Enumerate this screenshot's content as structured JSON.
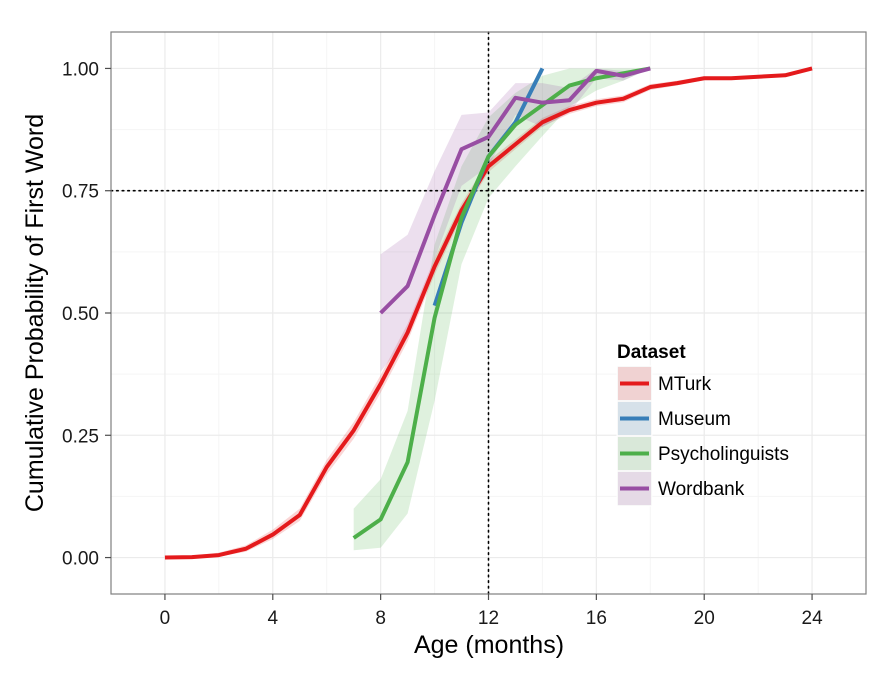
{
  "chart_data": {
    "type": "line",
    "xlabel": "Age (months)",
    "ylabel": "Cumulative Probability of First Word",
    "xlim": [
      -2,
      26
    ],
    "ylim": [
      -0.0745,
      1.0745
    ],
    "x_ticks": [
      0,
      4,
      8,
      12,
      16,
      20,
      24
    ],
    "y_ticks": [
      0.0,
      0.25,
      0.5,
      0.75,
      1.0
    ],
    "x_tick_labels": [
      "0",
      "4",
      "8",
      "12",
      "16",
      "20",
      "24"
    ],
    "y_tick_labels": [
      "0.00",
      "0.25",
      "0.50",
      "0.75",
      "1.00"
    ],
    "grid": true,
    "reference_lines": {
      "vertical_x": 12,
      "horizontal_y": 0.75,
      "style": "dotted"
    },
    "legend": {
      "title": "Dataset",
      "position": "right"
    },
    "series": [
      {
        "name": "MTurk",
        "color": "#e41a1c",
        "x": [
          0,
          1,
          2,
          3,
          4,
          5,
          6,
          7,
          8,
          9,
          10,
          11,
          12,
          13,
          14,
          15,
          16,
          17,
          18,
          19,
          20,
          21,
          22,
          23,
          24
        ],
        "y": [
          0.0,
          0.001,
          0.005,
          0.018,
          0.047,
          0.087,
          0.185,
          0.26,
          0.355,
          0.46,
          0.595,
          0.71,
          0.8,
          0.845,
          0.89,
          0.915,
          0.93,
          0.938,
          0.962,
          0.97,
          0.98,
          0.98,
          0.983,
          0.986,
          1.0
        ],
        "lower": [
          0.0,
          0.0,
          0.002,
          0.012,
          0.038,
          0.075,
          0.17,
          0.243,
          0.337,
          0.442,
          0.578,
          0.696,
          0.788,
          0.835,
          0.881,
          0.907,
          0.923,
          0.931,
          0.956,
          0.965,
          0.976,
          0.977,
          0.98,
          0.983,
          1.0
        ],
        "upper": [
          0.002,
          0.004,
          0.01,
          0.025,
          0.057,
          0.1,
          0.2,
          0.277,
          0.373,
          0.478,
          0.612,
          0.724,
          0.812,
          0.855,
          0.899,
          0.923,
          0.937,
          0.945,
          0.968,
          0.975,
          0.984,
          0.983,
          0.986,
          0.989,
          1.0
        ]
      },
      {
        "name": "Museum",
        "color": "#377eb8",
        "x": [
          10,
          11,
          12,
          13,
          14
        ],
        "y": [
          0.515,
          0.685,
          0.82,
          0.89,
          1.0
        ],
        "lower": [
          0.515,
          0.685,
          0.82,
          0.89,
          1.0
        ],
        "upper": [
          0.515,
          0.685,
          0.82,
          0.89,
          1.0
        ]
      },
      {
        "name": "Psycholinguists",
        "color": "#4daf4a",
        "x": [
          7,
          8,
          9,
          10,
          11,
          12,
          13,
          14,
          15,
          16,
          17,
          18
        ],
        "y": [
          0.04,
          0.078,
          0.195,
          0.49,
          0.695,
          0.82,
          0.885,
          0.925,
          0.965,
          0.98,
          0.99,
          1.0
        ],
        "lower": [
          0.015,
          0.02,
          0.09,
          0.32,
          0.6,
          0.735,
          0.8,
          0.862,
          0.922,
          0.955,
          0.975,
          1.0
        ],
        "upper": [
          0.1,
          0.16,
          0.3,
          0.64,
          0.8,
          0.9,
          0.95,
          0.985,
          1.0,
          1.0,
          1.0,
          1.0
        ]
      },
      {
        "name": "Wordbank",
        "color": "#984ea3",
        "x": [
          8,
          9,
          10,
          11,
          12,
          13,
          14,
          15,
          16,
          17,
          18
        ],
        "y": [
          0.5,
          0.555,
          0.7,
          0.835,
          0.86,
          0.94,
          0.93,
          0.935,
          0.995,
          0.985,
          1.0
        ],
        "lower": [
          0.38,
          0.45,
          0.61,
          0.76,
          0.8,
          0.905,
          0.88,
          0.91,
          0.98,
          0.975,
          1.0
        ],
        "upper": [
          0.62,
          0.66,
          0.79,
          0.905,
          0.91,
          0.97,
          0.97,
          0.96,
          1.0,
          0.995,
          1.0
        ]
      }
    ]
  },
  "colors": {
    "plot_background": "#ffffff",
    "panel_border": "#7f7f7f",
    "grid_major": "#ebebeb",
    "grid_minor": "#f5f5f5",
    "reference_line": "#000000"
  }
}
